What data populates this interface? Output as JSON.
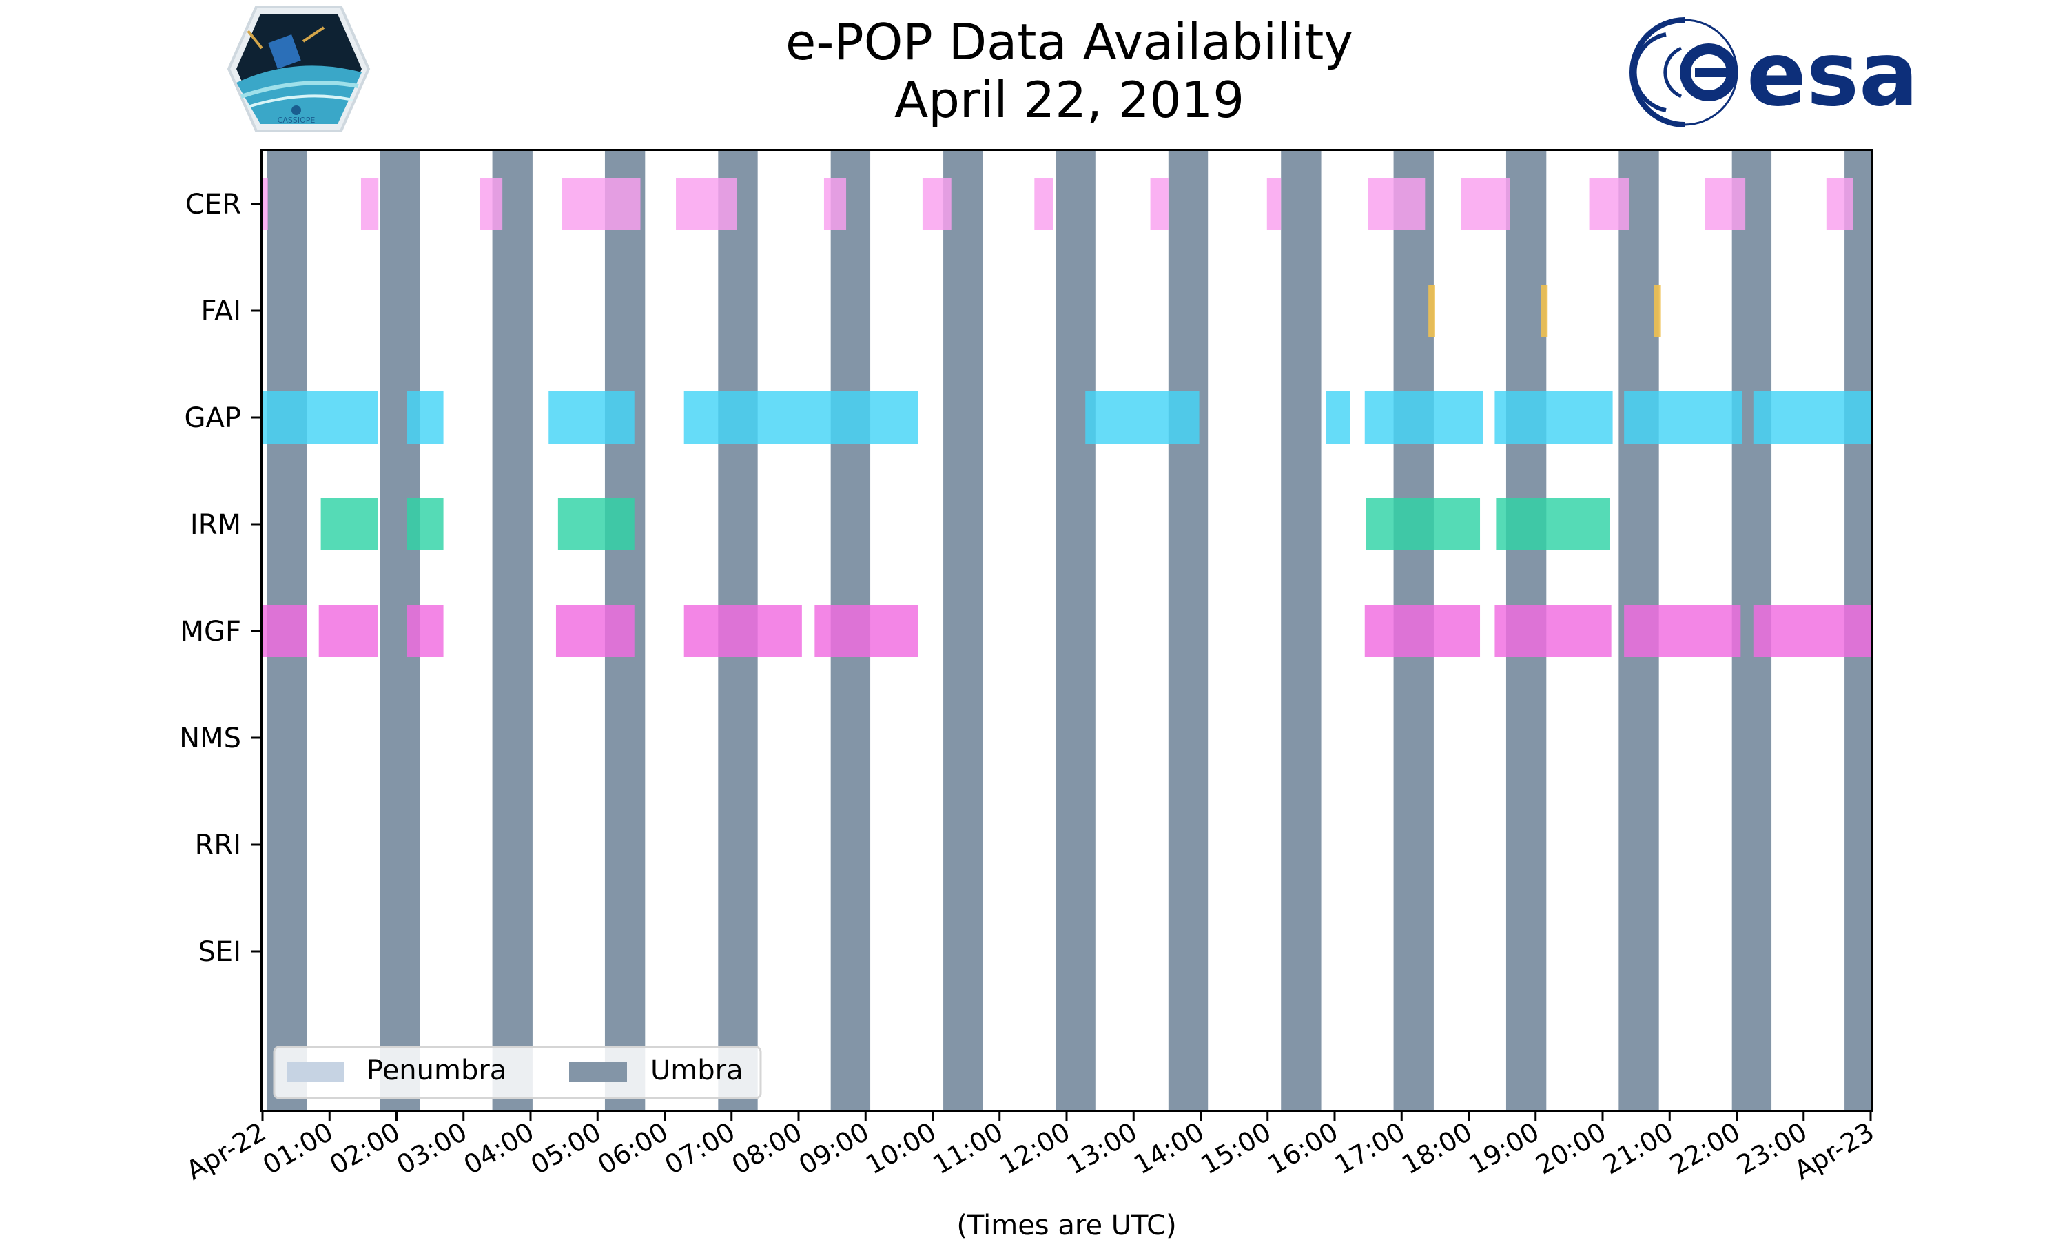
{
  "chart_data": {
    "type": "timeline",
    "title": "e-POP Data Availability",
    "subtitle": "April 22, 2019",
    "xlabel": "(Times are UTC)",
    "x_range_hours": [
      0,
      24
    ],
    "x_ticks": [
      "Apr-22",
      "01:00",
      "02:00",
      "03:00",
      "04:00",
      "05:00",
      "06:00",
      "07:00",
      "08:00",
      "09:00",
      "10:00",
      "11:00",
      "12:00",
      "13:00",
      "14:00",
      "15:00",
      "16:00",
      "17:00",
      "18:00",
      "19:00",
      "20:00",
      "21:00",
      "22:00",
      "23:00",
      "Apr-23"
    ],
    "instruments": [
      "CER",
      "FAI",
      "GAP",
      "IRM",
      "MGF",
      "NMS",
      "RRI",
      "SEI"
    ],
    "legend": {
      "placement": "lower-left",
      "items": [
        {
          "label": "Penumbra",
          "color": "#c6d3e3"
        },
        {
          "label": "Umbra",
          "color": "#8395a7"
        }
      ]
    },
    "umbra_hours": [
      [
        0.07,
        0.66
      ],
      [
        1.75,
        2.35
      ],
      [
        3.43,
        4.03
      ],
      [
        5.11,
        5.71
      ],
      [
        6.8,
        7.39
      ],
      [
        8.48,
        9.07
      ],
      [
        10.16,
        10.75
      ],
      [
        11.84,
        12.43
      ],
      [
        13.52,
        14.11
      ],
      [
        15.2,
        15.8
      ],
      [
        16.88,
        17.48
      ],
      [
        18.56,
        19.16
      ],
      [
        20.24,
        20.84
      ],
      [
        21.93,
        22.52
      ],
      [
        23.61,
        24.0
      ]
    ],
    "availability": [
      {
        "name": "CER",
        "color": "#f9a0ef",
        "intervals": [
          [
            0.0,
            0.08
          ],
          [
            1.47,
            1.73
          ],
          [
            3.24,
            3.58
          ],
          [
            4.47,
            5.64
          ],
          [
            6.17,
            7.08
          ],
          [
            8.38,
            8.71
          ],
          [
            9.85,
            10.28
          ],
          [
            11.52,
            11.8
          ],
          [
            13.25,
            13.52
          ],
          [
            14.99,
            15.2
          ],
          [
            16.5,
            17.35
          ],
          [
            17.89,
            18.62
          ],
          [
            19.8,
            20.4
          ],
          [
            21.53,
            22.13
          ],
          [
            23.34,
            23.74
          ]
        ]
      },
      {
        "name": "FAI",
        "color": "#f0c050",
        "intervals": [
          [
            17.4,
            17.5
          ],
          [
            19.08,
            19.18
          ],
          [
            20.77,
            20.87
          ]
        ]
      },
      {
        "name": "GAP",
        "color": "#44d4f7",
        "intervals": [
          [
            0.0,
            1.72
          ],
          [
            2.15,
            2.7
          ],
          [
            4.27,
            5.55
          ],
          [
            6.29,
            9.78
          ],
          [
            12.28,
            13.98
          ],
          [
            15.87,
            16.23
          ],
          [
            16.45,
            18.22
          ],
          [
            18.39,
            20.15
          ],
          [
            20.32,
            22.08
          ],
          [
            22.25,
            24.0
          ]
        ]
      },
      {
        "name": "IRM",
        "color": "#2fd3a6",
        "intervals": [
          [
            0.87,
            1.72
          ],
          [
            2.15,
            2.7
          ],
          [
            4.41,
            5.55
          ],
          [
            16.47,
            18.17
          ],
          [
            18.41,
            20.11
          ]
        ]
      },
      {
        "name": "MGF",
        "color": "#f06be0",
        "intervals": [
          [
            0.0,
            0.66
          ],
          [
            0.84,
            1.72
          ],
          [
            2.15,
            2.7
          ],
          [
            4.38,
            5.55
          ],
          [
            6.29,
            8.05
          ],
          [
            8.24,
            9.78
          ],
          [
            16.45,
            18.17
          ],
          [
            18.39,
            20.13
          ],
          [
            20.32,
            22.06
          ],
          [
            22.25,
            24.0
          ]
        ]
      },
      {
        "name": "NMS",
        "color": "#cccccc",
        "intervals": []
      },
      {
        "name": "RRI",
        "color": "#cccccc",
        "intervals": []
      },
      {
        "name": "SEI",
        "color": "#cccccc",
        "intervals": []
      }
    ]
  },
  "logos": {
    "left_text": "CASSIOPE",
    "right_text": "esa"
  }
}
